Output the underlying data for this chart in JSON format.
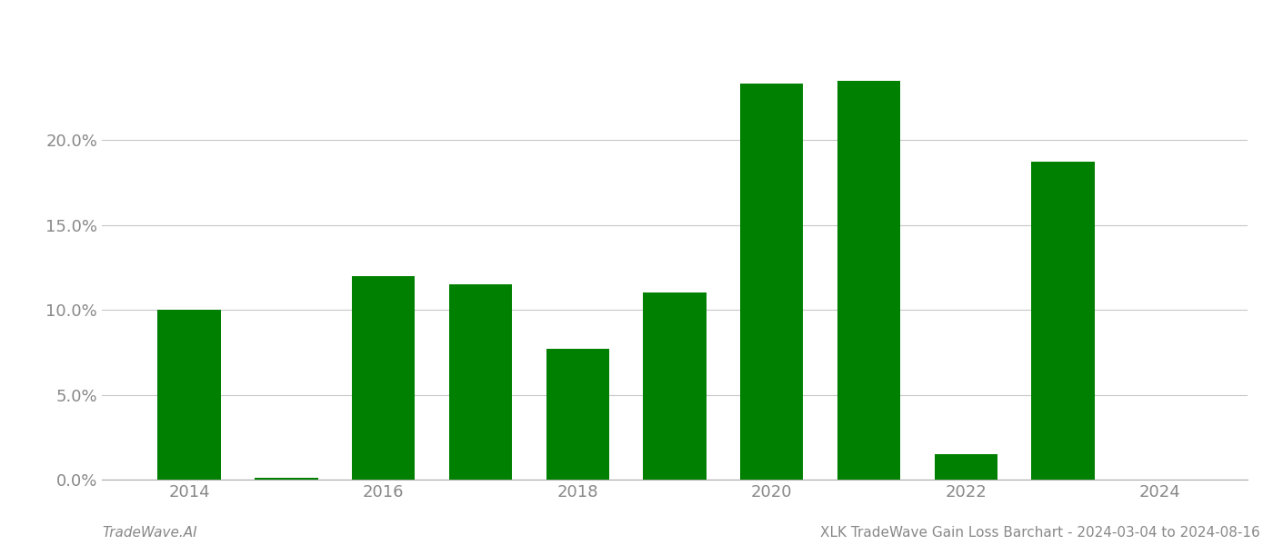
{
  "years": [
    2014,
    2015,
    2016,
    2017,
    2018,
    2019,
    2020,
    2021,
    2022,
    2023
  ],
  "values": [
    0.1,
    0.001,
    0.12,
    0.115,
    0.077,
    0.11,
    0.233,
    0.235,
    0.015,
    0.187
  ],
  "bar_color": "#008000",
  "background_color": "#ffffff",
  "grid_color": "#c8c8c8",
  "axis_color": "#aaaaaa",
  "ylabel_color": "#888888",
  "xlabel_color": "#888888",
  "ylim_min": 0.0,
  "ylim_max": 0.26,
  "yticks": [
    0.0,
    0.05,
    0.1,
    0.15,
    0.2
  ],
  "ytick_labels": [
    "0.0%",
    "5.0%",
    "10.0%",
    "15.0%",
    "20.0%"
  ],
  "xtick_labels": [
    "2014",
    "2016",
    "2018",
    "2020",
    "2022",
    "2024"
  ],
  "xtick_positions": [
    2014,
    2016,
    2018,
    2020,
    2022,
    2024
  ],
  "xlim_min": 2013.1,
  "xlim_max": 2024.9,
  "footer_left": "TradeWave.AI",
  "footer_right": "XLK TradeWave Gain Loss Barchart - 2024-03-04 to 2024-08-16",
  "footer_color": "#888888",
  "bar_width": 0.65
}
